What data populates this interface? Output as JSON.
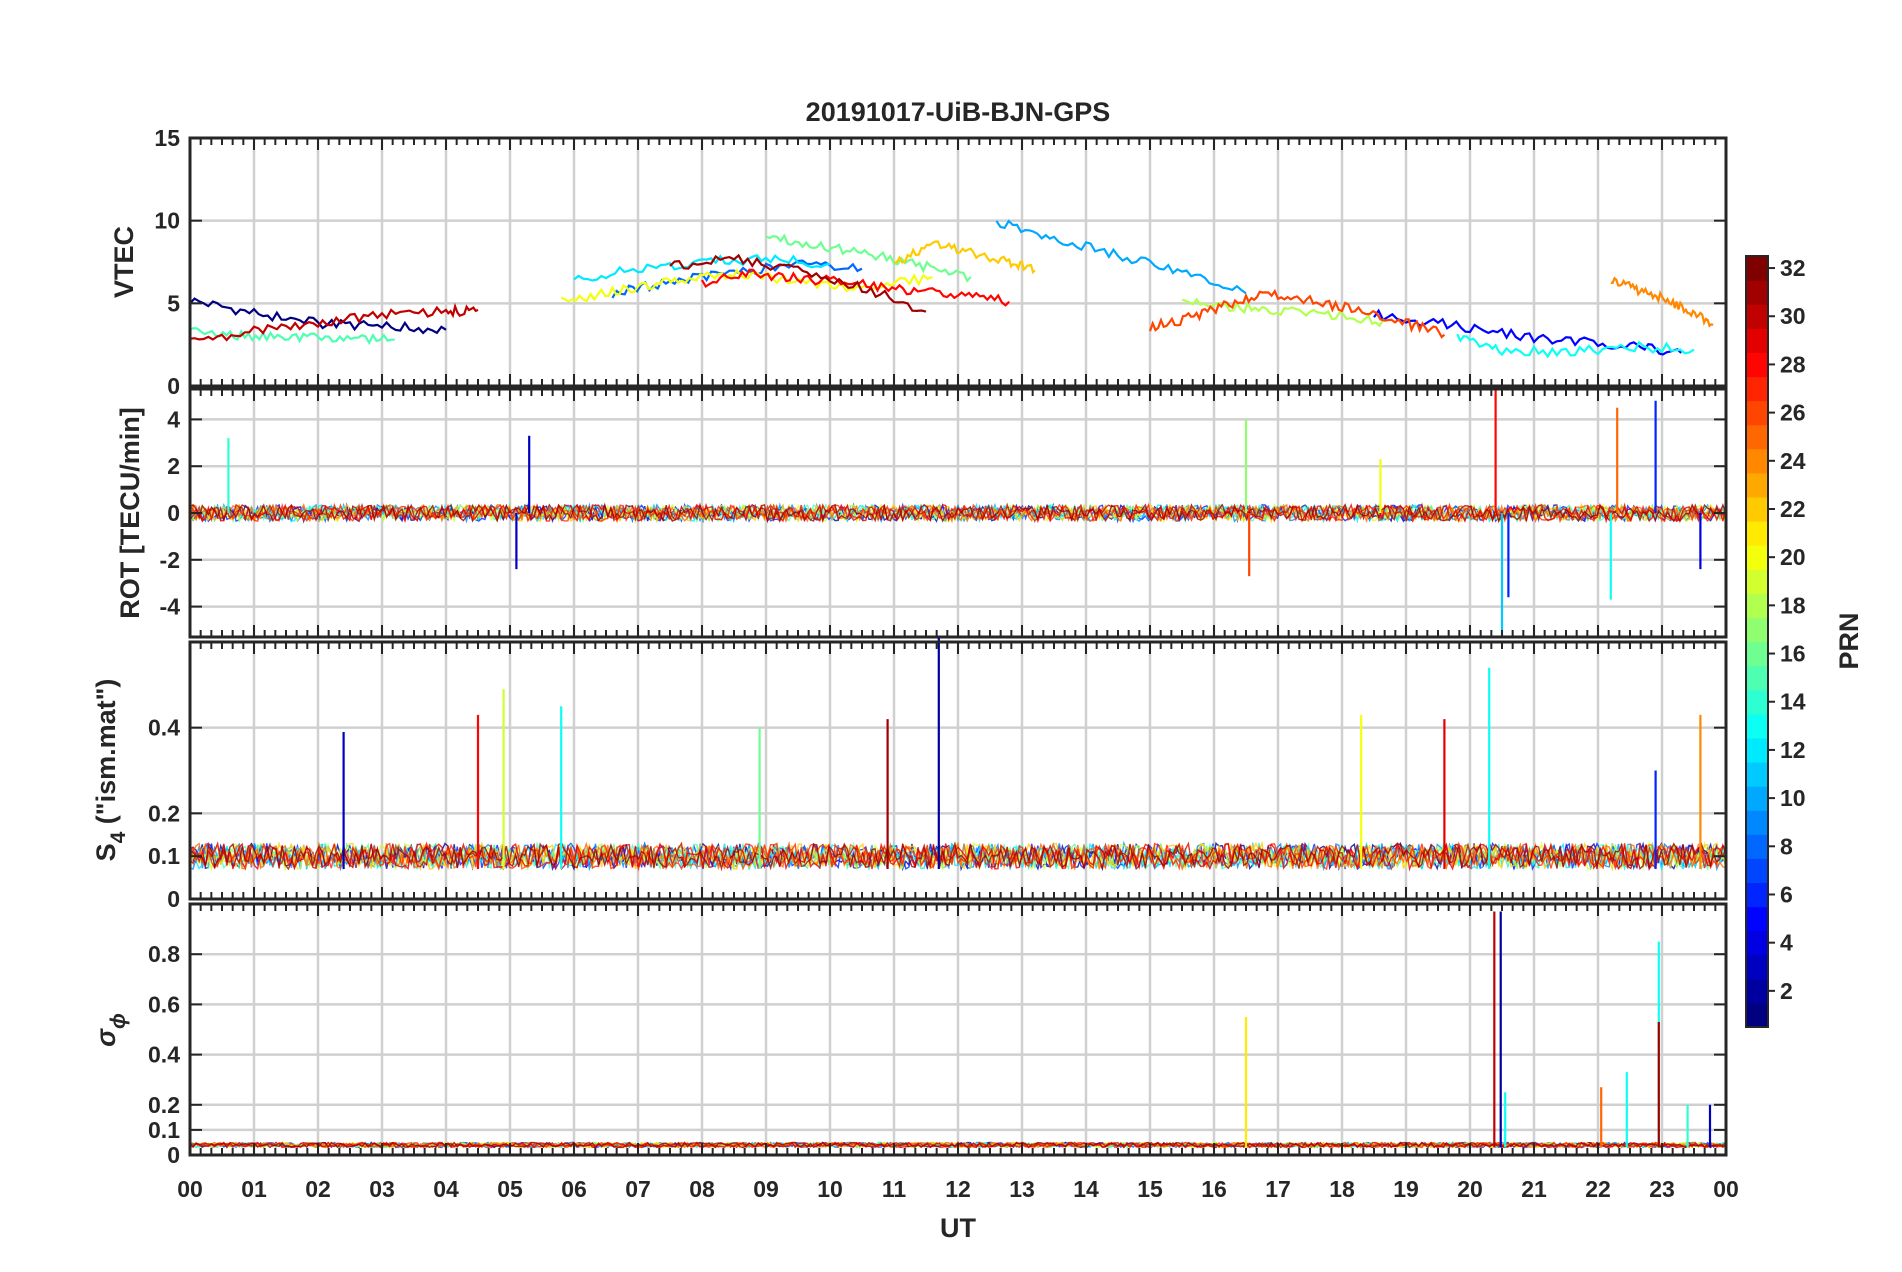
{
  "title": "20191017-UiB-BJN-GPS",
  "xlabel": "UT",
  "x_tick_labels": [
    "00",
    "01",
    "02",
    "03",
    "04",
    "05",
    "06",
    "07",
    "08",
    "09",
    "10",
    "11",
    "12",
    "13",
    "14",
    "15",
    "16",
    "17",
    "18",
    "19",
    "20",
    "21",
    "22",
    "23",
    "00"
  ],
  "colorbar": {
    "label": "PRN",
    "range": [
      1,
      32
    ],
    "tick_values": [
      2,
      4,
      6,
      8,
      10,
      12,
      14,
      16,
      18,
      20,
      22,
      24,
      26,
      28,
      30,
      32
    ],
    "tick_labels": [
      "2",
      "4",
      "6",
      "8",
      "10",
      "12",
      "14",
      "16",
      "18",
      "20",
      "22",
      "24",
      "26",
      "28",
      "30",
      "32"
    ],
    "colormap": "jet"
  },
  "panels": [
    {
      "id": "vtec",
      "ylabel": "VTEC",
      "ylim": [
        0,
        15
      ],
      "y_tick_values": [
        0,
        5,
        10,
        15
      ],
      "y_tick_labels": [
        "0",
        "5",
        "10",
        "15"
      ]
    },
    {
      "id": "rot",
      "ylabel": "ROT [TECU/min]",
      "ylim": [
        -5.3,
        5.3
      ],
      "y_tick_values": [
        -4,
        -2,
        0,
        2,
        4
      ],
      "y_tick_labels": [
        "-4",
        "-2",
        "0",
        "2",
        "4"
      ]
    },
    {
      "id": "s4",
      "ylabel_main": "S",
      "ylabel_sub": "4",
      "ylabel_rest": " (\"ism.mat\")",
      "ylim": [
        0,
        0.6
      ],
      "y_tick_values": [
        0,
        0.1,
        0.2,
        0.4
      ],
      "y_tick_labels": [
        "0",
        "0.1",
        "0.2",
        "0.4"
      ]
    },
    {
      "id": "sigphi",
      "ylabel_main": "σ",
      "ylabel_sub": "ϕ",
      "ylim": [
        0,
        1
      ],
      "y_tick_values": [
        0,
        0.1,
        0.2,
        0.4,
        0.6,
        0.8
      ],
      "y_tick_labels": [
        "0",
        "0.1",
        "0.2",
        "0.4",
        "0.6",
        "0.8"
      ]
    }
  ],
  "chart_data": {
    "type": "line",
    "title": "20191017-UiB-BJN-GPS",
    "xlabel": "UT",
    "x_unit": "hours UT",
    "xlim": [
      0,
      24
    ],
    "grid": true,
    "color_by": "PRN",
    "panels": [
      {
        "ylabel": "VTEC",
        "ylim": [
          0,
          15
        ],
        "series": [
          {
            "prn": 1,
            "x": [
              0,
              1,
              2,
              3,
              4
            ],
            "y": [
              5.2,
              4.4,
              3.8,
              3.6,
              3.4
            ]
          },
          {
            "prn": 5,
            "x": [
              18.5,
              19.5,
              20.5,
              21.5,
              22.5,
              23.3
            ],
            "y": [
              4.3,
              3.8,
              3.2,
              2.7,
              2.5,
              2.0
            ]
          },
          {
            "prn": 8,
            "x": [
              6.6,
              7.5,
              8.5,
              9.5,
              10.5
            ],
            "y": [
              5.6,
              6.3,
              6.9,
              7.3,
              7.1
            ]
          },
          {
            "prn": 10,
            "x": [
              12.6,
              13.5,
              14.5,
              15.5,
              16.5
            ],
            "y": [
              9.9,
              8.9,
              7.9,
              6.9,
              5.6
            ]
          },
          {
            "prn": 12,
            "x": [
              6.0,
              7.0,
              8.0,
              9.0,
              10.0
            ],
            "y": [
              6.4,
              7.1,
              7.5,
              7.7,
              7.4
            ]
          },
          {
            "prn": 13,
            "x": [
              19.8,
              20.5,
              21.5,
              22.5,
              23.5
            ],
            "y": [
              3.0,
              2.2,
              2.0,
              2.4,
              2.2
            ]
          },
          {
            "prn": 15,
            "x": [
              0,
              0.8,
              1.6,
              2.4,
              3.2
            ],
            "y": [
              3.3,
              3.1,
              2.9,
              3.0,
              2.8
            ]
          },
          {
            "prn": 16,
            "x": [
              9.0,
              9.8,
              10.6,
              11.4,
              12.2
            ],
            "y": [
              9.1,
              8.5,
              8.0,
              7.3,
              6.6
            ]
          },
          {
            "prn": 18,
            "x": [
              15.5,
              16.3,
              17.1,
              17.9,
              18.7
            ],
            "y": [
              5.2,
              4.8,
              4.5,
              4.2,
              3.9
            ]
          },
          {
            "prn": 20,
            "x": [
              5.8,
              6.6,
              7.4,
              8.2,
              9.0,
              9.8,
              10.6,
              11.6
            ],
            "y": [
              5.1,
              5.7,
              6.3,
              6.8,
              6.6,
              6.1,
              5.9,
              6.6
            ]
          },
          {
            "prn": 22,
            "x": [
              11.0,
              11.6,
              12.2,
              12.8,
              13.2
            ],
            "y": [
              7.5,
              8.6,
              8.1,
              7.5,
              7.0
            ]
          },
          {
            "prn": 24,
            "x": [
              22.2,
              22.6,
              23.0,
              23.4,
              23.8
            ],
            "y": [
              6.5,
              5.8,
              5.3,
              4.6,
              3.7
            ]
          },
          {
            "prn": 26,
            "x": [
              15.0,
              15.6,
              16.2,
              16.8,
              17.5,
              18.2,
              19.0,
              19.6
            ],
            "y": [
              3.6,
              4.1,
              4.9,
              5.7,
              5.2,
              4.6,
              3.8,
              3.1
            ]
          },
          {
            "prn": 28,
            "x": [
              8.0,
              8.8,
              9.6,
              10.4,
              11.2,
              12.0,
              12.8
            ],
            "y": [
              6.2,
              6.8,
              6.5,
              6.2,
              5.8,
              5.5,
              5.1
            ]
          },
          {
            "prn": 30,
            "x": [
              0,
              1,
              2,
              3,
              4,
              4.5
            ],
            "y": [
              2.6,
              3.3,
              3.8,
              4.3,
              4.5,
              4.6
            ]
          },
          {
            "prn": 31,
            "x": [
              7.5,
              8.5,
              9.5,
              10.5,
              11.5
            ],
            "y": [
              7.2,
              7.7,
              7.0,
              6.0,
              4.5
            ]
          }
        ]
      },
      {
        "ylabel": "ROT [TECU/min]",
        "ylim": [
          -5.3,
          5.3
        ],
        "spikes": [
          {
            "prn": 3,
            "x": 5.3,
            "y": 3.3
          },
          {
            "prn": 3,
            "x": 5.1,
            "y": -2.4
          },
          {
            "prn": 14,
            "x": 0.6,
            "y": 3.2
          },
          {
            "prn": 17,
            "x": 16.5,
            "y": 4.0
          },
          {
            "prn": 26,
            "x": 16.55,
            "y": -2.7
          },
          {
            "prn": 20,
            "x": 18.6,
            "y": 2.3
          },
          {
            "prn": 28,
            "x": 20.4,
            "y": 5.3
          },
          {
            "prn": 11,
            "x": 20.5,
            "y": -5.3
          },
          {
            "prn": 6,
            "x": 20.6,
            "y": -3.6
          },
          {
            "prn": 25,
            "x": 22.3,
            "y": 4.5
          },
          {
            "prn": 13,
            "x": 22.2,
            "y": -3.7
          },
          {
            "prn": 6,
            "x": 22.9,
            "y": 4.8
          },
          {
            "prn": 4,
            "x": 23.6,
            "y": -2.4
          }
        ]
      },
      {
        "ylabel": "S4 (\"ism.mat\")",
        "ylim": [
          0,
          0.6
        ],
        "spikes": [
          {
            "prn": 3,
            "x": 2.4,
            "y": 0.39
          },
          {
            "prn": 28,
            "x": 4.5,
            "y": 0.43
          },
          {
            "prn": 19,
            "x": 4.9,
            "y": 0.49
          },
          {
            "prn": 13,
            "x": 5.8,
            "y": 0.45
          },
          {
            "prn": 16,
            "x": 8.9,
            "y": 0.4
          },
          {
            "prn": 31,
            "x": 10.9,
            "y": 0.42
          },
          {
            "prn": 2,
            "x": 11.7,
            "y": 0.61
          },
          {
            "prn": 20,
            "x": 18.3,
            "y": 0.43
          },
          {
            "prn": 29,
            "x": 19.6,
            "y": 0.42
          },
          {
            "prn": 13,
            "x": 20.3,
            "y": 0.54
          },
          {
            "prn": 24,
            "x": 23.6,
            "y": 0.43
          },
          {
            "prn": 6,
            "x": 22.9,
            "y": 0.3
          }
        ]
      },
      {
        "ylabel": "σφ",
        "ylim": [
          0,
          1
        ],
        "spikes": [
          {
            "prn": 21,
            "x": 16.5,
            "y": 0.55
          },
          {
            "prn": 30,
            "x": 20.38,
            "y": 0.97
          },
          {
            "prn": 2,
            "x": 20.48,
            "y": 0.97
          },
          {
            "prn": 13,
            "x": 20.55,
            "y": 0.25
          },
          {
            "prn": 25,
            "x": 22.05,
            "y": 0.27
          },
          {
            "prn": 13,
            "x": 22.45,
            "y": 0.33
          },
          {
            "prn": 13,
            "x": 22.95,
            "y": 0.85
          },
          {
            "prn": 31,
            "x": 22.95,
            "y": 0.53
          },
          {
            "prn": 14,
            "x": 23.4,
            "y": 0.2
          },
          {
            "prn": 3,
            "x": 23.75,
            "y": 0.2
          }
        ]
      }
    ]
  }
}
